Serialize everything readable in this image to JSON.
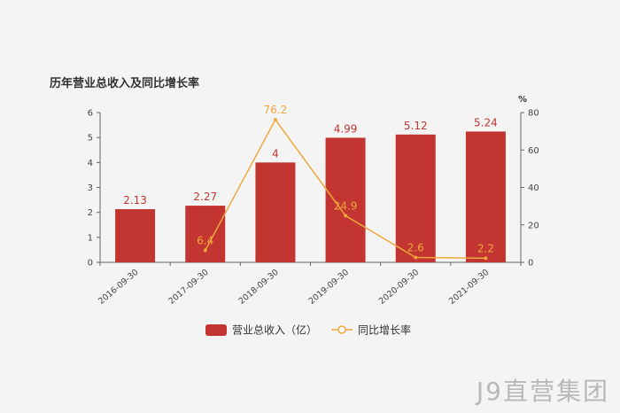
{
  "chart_data": {
    "type": "bar",
    "title": "历年营业总收入及同比增长率",
    "categories": [
      "2016-09-30",
      "2017-09-30",
      "2018-09-30",
      "2019-09-30",
      "2020-09-30",
      "2021-09-30"
    ],
    "series": [
      {
        "name": "营业总收入（亿）",
        "type": "bar",
        "axis": "left",
        "values": [
          2.13,
          2.27,
          4,
          4.99,
          5.12,
          5.24
        ],
        "color": "#c23531"
      },
      {
        "name": "同比增长率",
        "type": "line",
        "axis": "right",
        "values": [
          null,
          6.4,
          76.2,
          24.9,
          2.6,
          2.2
        ],
        "color": "#f0a83c"
      }
    ],
    "y_left": {
      "min": 0,
      "max": 6,
      "ticks": [
        0,
        1,
        2,
        3,
        4,
        5,
        6
      ]
    },
    "y_right": {
      "min": 0,
      "max": 80,
      "ticks": [
        0,
        20,
        40,
        60,
        80
      ],
      "unit": "%"
    },
    "grid": false,
    "legend": "bottom-center"
  },
  "watermark": "J9直营集团"
}
